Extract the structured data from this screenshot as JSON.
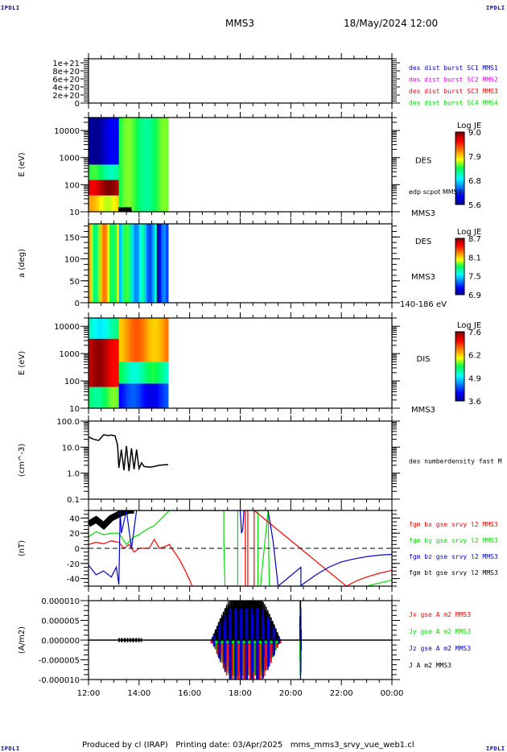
{
  "header": {
    "corner_tag": "IPDLI",
    "spacecraft": "MMS3",
    "datetime": "18/May/2024 12:00"
  },
  "footer": {
    "text": "Produced by cl (IRAP)   Printing date: 03/Apr/2025   mms_mms3_srvy_vue_web1.cl"
  },
  "colors": {
    "red": "#ff0000",
    "green": "#00dd00",
    "blue": "#0000cc",
    "magenta": "#ee00ee",
    "black": "#000000"
  },
  "chart_data": [
    {
      "id": "distribution-flags",
      "type": "line",
      "ylabel": "",
      "yscale": "linear",
      "ylim": [
        0,
        1.1e+21
      ],
      "yticks": [
        "0",
        "2e+20",
        "4e+20",
        "6e+20",
        "8e+20",
        "1e+21"
      ],
      "ytick_values": [
        0,
        2e+20,
        4e+20,
        6e+20,
        8e+20,
        1e+21
      ],
      "reference_line": 0,
      "legend": [
        {
          "label": "des dist burst SC1 MMS1",
          "color": "#0000cc"
        },
        {
          "label": "des dist burst SC2 MMS2",
          "color": "#ee00ee"
        },
        {
          "label": "des dist burst SC3 MMS3",
          "color": "#ff0000"
        },
        {
          "label": "des dist burst SC4 MMS4",
          "color": "#00dd00"
        }
      ],
      "series": []
    },
    {
      "id": "des-energy-spectrogram",
      "type": "heatmap",
      "ylabel": "E (eV)",
      "yscale": "log",
      "ylim": [
        10,
        30000
      ],
      "yticks": [
        "10",
        "100",
        "1000",
        "10000"
      ],
      "ytick_values": [
        10,
        100,
        1000,
        10000
      ],
      "instrument_label": "DES",
      "overlay_label": "edp scpot MMS3",
      "sc_label": "MMS3",
      "colorbar": {
        "title": "Log JE",
        "ticks": [
          "5.6",
          "6.8",
          "7.9",
          "9.0"
        ],
        "min": 5.6,
        "max": 9.0
      },
      "data_end_hour": 15.15,
      "regions": [
        {
          "t0": 12.0,
          "t1": 13.2,
          "e0": 10,
          "e1": 40,
          "value": 7.8
        },
        {
          "t0": 12.0,
          "t1": 13.2,
          "e0": 40,
          "e1": 150,
          "value": 8.8
        },
        {
          "t0": 12.0,
          "t1": 13.2,
          "e0": 150,
          "e1": 550,
          "value": 7.2
        },
        {
          "t0": 12.0,
          "t1": 13.2,
          "e0": 550,
          "e1": 30000,
          "value": 5.8
        },
        {
          "t0": 13.2,
          "t1": 15.15,
          "e0": 10,
          "e1": 30000,
          "value": 7.3
        }
      ]
    },
    {
      "id": "des-pitch-angle",
      "type": "heatmap",
      "ylabel": "a (deg)",
      "yscale": "linear",
      "ylim": [
        0,
        180
      ],
      "yticks": [
        "0",
        "50",
        "100",
        "150"
      ],
      "ytick_values": [
        0,
        50,
        100,
        150
      ],
      "instrument_label": "DES",
      "sc_label": "MMS3",
      "energy_range_label": "140-186 eV",
      "colorbar": {
        "title": "Log JE",
        "ticks": [
          "6.9",
          "7.5",
          "8.1",
          "8.7"
        ],
        "min": 6.9,
        "max": 8.7
      },
      "data_end_hour": 15.15,
      "bands": [
        {
          "t0": 12.0,
          "t1": 13.2,
          "value": 8.0
        },
        {
          "t0": 13.2,
          "t1": 14.1,
          "value": 7.6
        },
        {
          "t0": 14.1,
          "t1": 14.7,
          "value": 7.5
        },
        {
          "t0": 14.7,
          "t1": 15.15,
          "value": 7.1
        }
      ]
    },
    {
      "id": "dis-energy-spectrogram",
      "type": "heatmap",
      "ylabel": "E (eV)",
      "yscale": "log",
      "ylim": [
        10,
        20000
      ],
      "yticks": [
        "10",
        "100",
        "1000",
        "10000"
      ],
      "ytick_values": [
        10,
        100,
        1000,
        10000
      ],
      "instrument_label": "DIS",
      "sc_label": "MMS3",
      "colorbar": {
        "title": "Log JE",
        "ticks": [
          "3.6",
          "4.9",
          "6.2",
          "7.6"
        ],
        "min": 3.6,
        "max": 7.6
      },
      "data_end_hour": 15.15,
      "regions": [
        {
          "t0": 12.0,
          "t1": 13.2,
          "e0": 10,
          "e1": 60,
          "value": 5.6
        },
        {
          "t0": 12.0,
          "t1": 13.2,
          "e0": 60,
          "e1": 3500,
          "value": 7.3
        },
        {
          "t0": 12.0,
          "t1": 13.2,
          "e0": 3500,
          "e1": 20000,
          "value": 5.2
        },
        {
          "t0": 13.2,
          "t1": 15.15,
          "e0": 10,
          "e1": 80,
          "value": 4.2
        },
        {
          "t0": 13.2,
          "t1": 15.15,
          "e0": 80,
          "e1": 500,
          "value": 5.4
        },
        {
          "t0": 13.2,
          "t1": 15.15,
          "e0": 500,
          "e1": 20000,
          "value": 6.5
        }
      ]
    },
    {
      "id": "electron-density",
      "type": "line",
      "ylabel": "(cm^-3)",
      "yscale": "log",
      "ylim": [
        0.1,
        100
      ],
      "yticks": [
        "0.1",
        "1.0",
        "10.0",
        "100.0"
      ],
      "ytick_values": [
        0.1,
        1,
        10,
        100
      ],
      "legend": [
        {
          "label": "des numberdensity fast M",
          "color": "#000000"
        }
      ],
      "series": [
        {
          "name": "des numberdensity fast",
          "color": "#000000",
          "x": [
            12.0,
            12.2,
            12.4,
            12.6,
            12.75,
            12.9,
            13.05,
            13.15,
            13.2,
            13.3,
            13.4,
            13.5,
            13.6,
            13.7,
            13.8,
            13.9,
            14.0,
            14.1,
            14.2,
            14.4,
            14.6,
            14.8,
            15.0,
            15.15
          ],
          "y": [
            25,
            20,
            18,
            30,
            28,
            29,
            27,
            12,
            1.6,
            8,
            1.3,
            11,
            1.2,
            9,
            1.4,
            8,
            1.5,
            2.5,
            1.8,
            1.7,
            1.8,
            2.0,
            2.1,
            2.1
          ]
        }
      ]
    },
    {
      "id": "magnetic-field",
      "type": "line",
      "ylabel": "(nT)",
      "yscale": "linear",
      "ylim": [
        -50,
        50
      ],
      "yticks": [
        "-40",
        "-20",
        "0",
        "20",
        "40"
      ],
      "ytick_values": [
        -40,
        -20,
        0,
        20,
        40
      ],
      "reference_line": 0,
      "legend": [
        {
          "label": "fgm bx gse srvy l2 MMS3",
          "color": "#ff0000"
        },
        {
          "label": "fgm by gse srvy l2 MMS3",
          "color": "#00dd00"
        },
        {
          "label": "fgm bz gse srvy l2 MMS3",
          "color": "#0000cc"
        },
        {
          "label": "fgm bt gse srvy l2 MMS3",
          "color": "#000000"
        }
      ],
      "series": [
        {
          "name": "bt",
          "color": "#000000",
          "x": [
            12.0,
            12.3,
            12.6,
            12.9,
            13.2,
            13.4,
            13.6,
            13.8
          ],
          "y": [
            32,
            38,
            30,
            40,
            45,
            48,
            50,
            50
          ]
        },
        {
          "name": "by",
          "color": "#00dd00",
          "x": [
            12.0,
            12.3,
            12.6,
            12.9,
            13.2,
            13.5,
            13.8,
            14.0,
            14.3,
            14.6,
            14.9,
            15.2,
            17.35,
            17.35,
            17.4,
            17.9,
            17.9,
            18.05,
            18.7,
            18.7,
            18.8,
            19.1,
            19.1,
            19.15,
            23.0,
            23.5,
            24.0
          ],
          "y": [
            15,
            22,
            18,
            20,
            20,
            5,
            15,
            18,
            25,
            30,
            40,
            50,
            50,
            10,
            -50,
            -50,
            50,
            50,
            50,
            -50,
            -50,
            50,
            50,
            -50,
            -50,
            -46,
            -42
          ]
        },
        {
          "name": "bx",
          "color": "#ff0000",
          "x": [
            12.0,
            12.3,
            12.6,
            12.9,
            13.2,
            13.4,
            13.6,
            13.8,
            14.0,
            14.2,
            14.4,
            14.6,
            14.8,
            15.0,
            15.2,
            15.4,
            15.6,
            15.8,
            16.0,
            16.1,
            18.2,
            18.2,
            18.3,
            18.3,
            18.55,
            18.55,
            22.2,
            22.6,
            23.0,
            23.5,
            24.0
          ],
          "y": [
            5,
            8,
            6,
            10,
            8,
            0,
            5,
            -5,
            0,
            0,
            0,
            12,
            0,
            2,
            5,
            -5,
            -15,
            -28,
            -42,
            -50,
            -50,
            50,
            50,
            -50,
            -50,
            50,
            -50,
            -43,
            -38,
            -33,
            -29
          ]
        },
        {
          "name": "bz",
          "color": "#0000cc",
          "x": [
            12.0,
            12.3,
            12.6,
            12.9,
            13.1,
            13.2,
            13.25,
            13.3,
            13.5,
            13.7,
            13.9,
            18.0,
            18.05,
            18.1,
            18.15,
            18.2,
            19.1,
            19.3,
            19.5,
            20.4,
            20.4,
            20.45,
            21.0,
            21.5,
            22.0,
            22.5,
            23.0,
            23.5,
            24.0
          ],
          "y": [
            -22,
            -35,
            -30,
            -38,
            -25,
            -48,
            50,
            20,
            50,
            0,
            50,
            50,
            20,
            25,
            50,
            50,
            50,
            10,
            -50,
            -25,
            -50,
            -48,
            -35,
            -25,
            -18,
            -14,
            -11,
            -9,
            -8
          ]
        }
      ]
    },
    {
      "id": "current-density",
      "type": "line",
      "ylabel": "(A/m2)",
      "yscale": "linear",
      "ylim": [
        -1e-05,
        1e-05
      ],
      "yticks": [
        "-0.000010",
        "-0.000005",
        "0.000000",
        "0.000005",
        "0.000010"
      ],
      "ytick_values": [
        -1e-05,
        -5e-06,
        0,
        5e-06,
        1e-05
      ],
      "xlabel": "",
      "xticks": [
        "12:00",
        "14:00",
        "16:00",
        "18:00",
        "20:00",
        "22:00",
        "00:00"
      ],
      "xtick_values": [
        12,
        14,
        16,
        18,
        20,
        22,
        24
      ],
      "xlim": [
        12,
        24
      ],
      "legend": [
        {
          "label": "Jx gse A m2 MMS3",
          "color": "#ff0000"
        },
        {
          "label": "Jy gse A m2 MMS3",
          "color": "#00dd00"
        },
        {
          "label": "Jz gse A m2 MMS3",
          "color": "#0000cc"
        },
        {
          "label": "J A m2 MMS3",
          "color": "#000000"
        }
      ],
      "bursts": [
        {
          "t0": 16.85,
          "t1": 19.6,
          "peak_abs": 1e-05
        },
        {
          "t0": 20.35,
          "t1": 20.42,
          "peak_abs": 1e-05
        }
      ]
    }
  ]
}
